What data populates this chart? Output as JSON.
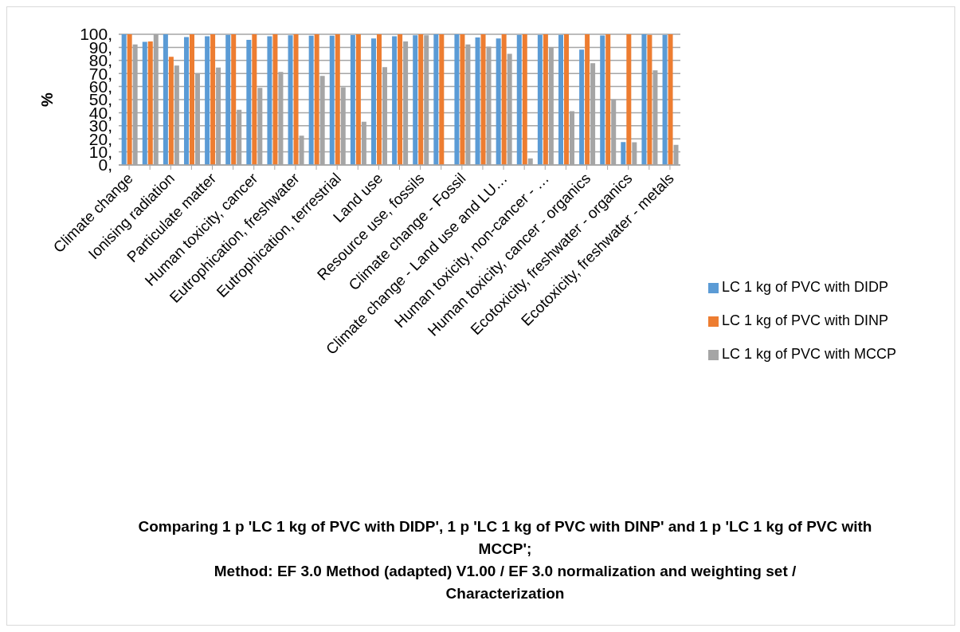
{
  "chart_data": {
    "type": "bar",
    "title": "Comparing 1 p 'LC 1 kg of PVC with DIDP', 1 p 'LC 1 kg of PVC with DINP' and 1 p 'LC 1 kg of PVC with MCCP';",
    "subtitle": "Method: EF 3.0 Method (adapted) V1.00 / EF 3.0 normalization and weighting set / Characterization",
    "ylabel": "%",
    "categories": [
      "Climate change",
      null,
      "Ionising radiation",
      null,
      "Particulate matter",
      null,
      "Human toxicity, cancer",
      null,
      "Eutrophication, freshwater",
      null,
      "Eutrophication, terrestrial",
      null,
      "Land use",
      null,
      "Resource use, fossils",
      null,
      "Climate change - Fossil",
      null,
      "Climate change - Land use and LU…",
      null,
      "Human toxicity, non-cancer - …",
      null,
      "Human toxicity, cancer - organics",
      null,
      "Ecotoxicity, freshwater - organics",
      null,
      "Ecotoxicity, freshwater - metals"
    ],
    "series": [
      {
        "name": "LC 1 kg of PVC with DIDP",
        "color": "#5b9bd5",
        "values": [
          100,
          94.2,
          100,
          97.9,
          98.5,
          99.5,
          95.7,
          98.4,
          99.3,
          98.9,
          99.0,
          99.4,
          96.8,
          98.4,
          99.2,
          100,
          100,
          97.5,
          96.8,
          99.5,
          99.5,
          99.5,
          88.3,
          99.1,
          17.6,
          100,
          99.5
        ]
      },
      {
        "name": "LC 1 kg of PVC with DINP",
        "color": "#ed7d31",
        "values": [
          100,
          94.5,
          82.7,
          100,
          100,
          100,
          100,
          100,
          100,
          100,
          100,
          100,
          100,
          100,
          100,
          100,
          100,
          100,
          100,
          100,
          100,
          100,
          100,
          100,
          100,
          99.5,
          100
        ]
      },
      {
        "name": "LC 1 kg of PVC with MCCP",
        "color": "#a5a5a5",
        "values": [
          92.2,
          100,
          76.1,
          70.1,
          74.6,
          42.2,
          59.0,
          71.2,
          22.4,
          68.2,
          59.4,
          33.1,
          74.8,
          94.5,
          99.2,
          0,
          92.2,
          90.6,
          85.1,
          5.1,
          90.2,
          41.1,
          77.9,
          50.1,
          17.4,
          72.4,
          15.4
        ]
      }
    ],
    "ylim": [
      0,
      100
    ],
    "yticks": [
      {
        "value": 0,
        "label": "0,"
      },
      {
        "value": 10,
        "label": "10,"
      },
      {
        "value": 20,
        "label": "20,"
      },
      {
        "value": 30,
        "label": "30,"
      },
      {
        "value": 40,
        "label": "40,"
      },
      {
        "value": 50,
        "label": "50,"
      },
      {
        "value": 60,
        "label": "60,"
      },
      {
        "value": 70,
        "label": "70,"
      },
      {
        "value": 80,
        "label": "80,"
      },
      {
        "value": 90,
        "label": "90,"
      },
      {
        "value": 100,
        "label": "100,"
      }
    ],
    "grid": "y",
    "legend": "right"
  }
}
